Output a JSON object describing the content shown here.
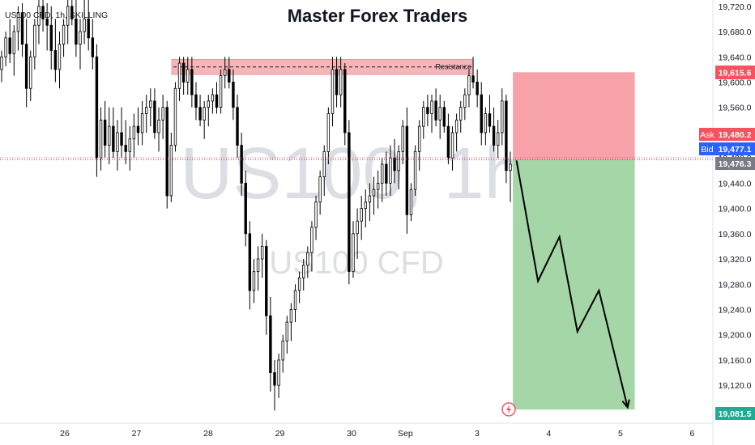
{
  "header": {
    "title": "Master Forex Traders",
    "symbol": "US100 CFD, 1h, SKILLING"
  },
  "watermark": {
    "symbol_interval": "US100, 1h",
    "description": "US100 CFD"
  },
  "annotations": {
    "resistance_label": "Resistance"
  },
  "colors": {
    "up": "#000000",
    "down": "#000000",
    "resistance_zone": "#f4a3a8",
    "stop_zone": "#f7a1a8",
    "target_zone": "#a5d6a7",
    "ask": "#f7525f",
    "bid": "#2962ff",
    "last": "#787b86",
    "target": "#22ab94"
  },
  "price_tags": {
    "stop": "19,615.6",
    "ask_label": "Ask",
    "ask": "19,480.2",
    "bid_label": "Bid",
    "bid": "19,477.1",
    "last": "19,476.3",
    "target": "19,081.5"
  },
  "chart_data": {
    "type": "candlestick",
    "y_axis": {
      "range": [
        19060,
        19730
      ],
      "ticks": [
        "19,720.0",
        "19,680.0",
        "19,640.0",
        "19,600.0",
        "19,560.0",
        "19,520.0",
        "19,480.0",
        "19,440.0",
        "19,400.0",
        "19,360.0",
        "19,320.0",
        "19,280.0",
        "19,240.0",
        "19,200.0",
        "19,160.0",
        "19,120.0"
      ],
      "tick_values": [
        19720,
        19680,
        19640,
        19600,
        19560,
        19520,
        19480,
        19440,
        19400,
        19360,
        19320,
        19280,
        19240,
        19200,
        19160,
        19120
      ]
    },
    "x_axis": {
      "labels": [
        "26",
        "27",
        "28",
        "29",
        "30",
        "Sep",
        "3",
        "4",
        "5",
        "6"
      ],
      "label_positions": [
        0,
        1,
        2,
        3,
        4,
        4.75,
        5.75,
        6.75,
        7.75,
        8.75
      ]
    },
    "candles": [
      [
        19620,
        19650,
        19600,
        19640
      ],
      [
        19640,
        19680,
        19625,
        19670
      ],
      [
        19670,
        19700,
        19630,
        19645
      ],
      [
        19645,
        19690,
        19610,
        19680
      ],
      [
        19680,
        19720,
        19650,
        19710
      ],
      [
        19710,
        19725,
        19640,
        19660
      ],
      [
        19660,
        19700,
        19560,
        19590
      ],
      [
        19590,
        19650,
        19570,
        19640
      ],
      [
        19640,
        19700,
        19620,
        19690
      ],
      [
        19690,
        19730,
        19660,
        19720
      ],
      [
        19720,
        19730,
        19680,
        19700
      ],
      [
        19700,
        19725,
        19650,
        19690
      ],
      [
        19690,
        19720,
        19620,
        19650
      ],
      [
        19650,
        19700,
        19600,
        19620
      ],
      [
        19620,
        19680,
        19590,
        19660
      ],
      [
        19660,
        19700,
        19640,
        19690
      ],
      [
        19690,
        19730,
        19660,
        19720
      ],
      [
        19720,
        19730,
        19690,
        19700
      ],
      [
        19700,
        19730,
        19640,
        19660
      ],
      [
        19660,
        19700,
        19620,
        19680
      ],
      [
        19680,
        19730,
        19660,
        19700
      ],
      [
        19700,
        19730,
        19650,
        19670
      ],
      [
        19670,
        19700,
        19620,
        19640
      ],
      [
        19640,
        19660,
        19450,
        19480
      ],
      [
        19480,
        19560,
        19460,
        19540
      ],
      [
        19540,
        19570,
        19480,
        19500
      ],
      [
        19500,
        19560,
        19470,
        19530
      ],
      [
        19530,
        19560,
        19480,
        19490
      ],
      [
        19490,
        19540,
        19460,
        19520
      ],
      [
        19520,
        19560,
        19480,
        19500
      ],
      [
        19500,
        19540,
        19470,
        19490
      ],
      [
        19490,
        19530,
        19460,
        19510
      ],
      [
        19510,
        19550,
        19480,
        19530
      ],
      [
        19530,
        19560,
        19500,
        19520
      ],
      [
        19520,
        19570,
        19500,
        19550
      ],
      [
        19550,
        19580,
        19520,
        19560
      ],
      [
        19560,
        19590,
        19530,
        19570
      ],
      [
        19570,
        19590,
        19510,
        19520
      ],
      [
        19520,
        19560,
        19490,
        19540
      ],
      [
        19540,
        19580,
        19510,
        19560
      ],
      [
        19560,
        19570,
        19400,
        19420
      ],
      [
        19420,
        19520,
        19410,
        19500
      ],
      [
        19500,
        19600,
        19490,
        19590
      ],
      [
        19590,
        19640,
        19570,
        19630
      ],
      [
        19630,
        19640,
        19580,
        19600
      ],
      [
        19600,
        19640,
        19580,
        19620
      ],
      [
        19620,
        19640,
        19560,
        19580
      ],
      [
        19580,
        19600,
        19540,
        19560
      ],
      [
        19560,
        19580,
        19530,
        19540
      ],
      [
        19540,
        19570,
        19510,
        19560
      ],
      [
        19560,
        19580,
        19530,
        19570
      ],
      [
        19570,
        19590,
        19550,
        19580
      ],
      [
        19580,
        19600,
        19550,
        19560
      ],
      [
        19560,
        19620,
        19550,
        19610
      ],
      [
        19610,
        19640,
        19590,
        19620
      ],
      [
        19620,
        19640,
        19590,
        19600
      ],
      [
        19600,
        19620,
        19540,
        19560
      ],
      [
        19560,
        19580,
        19480,
        19500
      ],
      [
        19500,
        19520,
        19420,
        19440
      ],
      [
        19440,
        19460,
        19340,
        19360
      ],
      [
        19360,
        19380,
        19240,
        19270
      ],
      [
        19270,
        19320,
        19250,
        19300
      ],
      [
        19300,
        19340,
        19270,
        19320
      ],
      [
        19320,
        19360,
        19290,
        19340
      ],
      [
        19340,
        19350,
        19200,
        19230
      ],
      [
        19230,
        19260,
        19110,
        19140
      ],
      [
        19140,
        19160,
        19080,
        19120
      ],
      [
        19120,
        19170,
        19100,
        19160
      ],
      [
        19160,
        19200,
        19140,
        19190
      ],
      [
        19190,
        19230,
        19170,
        19220
      ],
      [
        19220,
        19250,
        19190,
        19240
      ],
      [
        19240,
        19280,
        19220,
        19270
      ],
      [
        19270,
        19300,
        19250,
        19290
      ],
      [
        19290,
        19320,
        19270,
        19310
      ],
      [
        19310,
        19340,
        19290,
        19330
      ],
      [
        19330,
        19380,
        19300,
        19370
      ],
      [
        19370,
        19420,
        19350,
        19410
      ],
      [
        19410,
        19460,
        19390,
        19450
      ],
      [
        19450,
        19500,
        19420,
        19490
      ],
      [
        19490,
        19560,
        19470,
        19550
      ],
      [
        19550,
        19640,
        19530,
        19620
      ],
      [
        19620,
        19640,
        19560,
        19580
      ],
      [
        19580,
        19640,
        19560,
        19620
      ],
      [
        19620,
        19630,
        19500,
        19520
      ],
      [
        19520,
        19540,
        19280,
        19300
      ],
      [
        19300,
        19380,
        19290,
        19360
      ],
      [
        19360,
        19400,
        19320,
        19380
      ],
      [
        19380,
        19420,
        19350,
        19400
      ],
      [
        19400,
        19430,
        19370,
        19410
      ],
      [
        19410,
        19440,
        19380,
        19420
      ],
      [
        19420,
        19450,
        19390,
        19430
      ],
      [
        19430,
        19460,
        19400,
        19440
      ],
      [
        19440,
        19480,
        19410,
        19470
      ],
      [
        19470,
        19490,
        19420,
        19440
      ],
      [
        19440,
        19500,
        19420,
        19480
      ],
      [
        19480,
        19510,
        19440,
        19460
      ],
      [
        19460,
        19500,
        19430,
        19490
      ],
      [
        19490,
        19540,
        19470,
        19530
      ],
      [
        19530,
        19560,
        19360,
        19390
      ],
      [
        19390,
        19440,
        19380,
        19430
      ],
      [
        19430,
        19500,
        19420,
        19490
      ],
      [
        19490,
        19540,
        19460,
        19530
      ],
      [
        19530,
        19570,
        19510,
        19560
      ],
      [
        19560,
        19580,
        19530,
        19550
      ],
      [
        19550,
        19580,
        19520,
        19570
      ],
      [
        19570,
        19590,
        19530,
        19540
      ],
      [
        19540,
        19580,
        19510,
        19560
      ],
      [
        19560,
        19570,
        19520,
        19530
      ],
      [
        19530,
        19550,
        19470,
        19480
      ],
      [
        19480,
        19530,
        19460,
        19520
      ],
      [
        19520,
        19550,
        19490,
        19540
      ],
      [
        19540,
        19570,
        19520,
        19560
      ],
      [
        19560,
        19590,
        19540,
        19580
      ],
      [
        19580,
        19620,
        19560,
        19610
      ],
      [
        19610,
        19640,
        19590,
        19600
      ],
      [
        19600,
        19620,
        19560,
        19580
      ],
      [
        19580,
        19600,
        19500,
        19520
      ],
      [
        19520,
        19560,
        19500,
        19550
      ],
      [
        19550,
        19580,
        19520,
        19530
      ],
      [
        19530,
        19560,
        19490,
        19500
      ],
      [
        19500,
        19540,
        19480,
        19520
      ],
      [
        19520,
        19590,
        19500,
        19570
      ],
      [
        19570,
        19580,
        19440,
        19460
      ],
      [
        19460,
        19490,
        19410,
        19470
      ]
    ],
    "resistance_zone": {
      "top": 19636,
      "bottom": 19612,
      "line": 19624,
      "from_candle": 22,
      "to_candle": 118
    },
    "short_position": {
      "entry": 19476.3,
      "stop": 19615.6,
      "target": 19081.5,
      "start_x": 6.25,
      "end_x": 7.95
    },
    "projection_path": [
      [
        6.3,
        19476
      ],
      [
        6.6,
        19285
      ],
      [
        6.9,
        19355
      ],
      [
        7.15,
        19205
      ],
      [
        7.45,
        19270
      ],
      [
        7.85,
        19085
      ]
    ]
  }
}
